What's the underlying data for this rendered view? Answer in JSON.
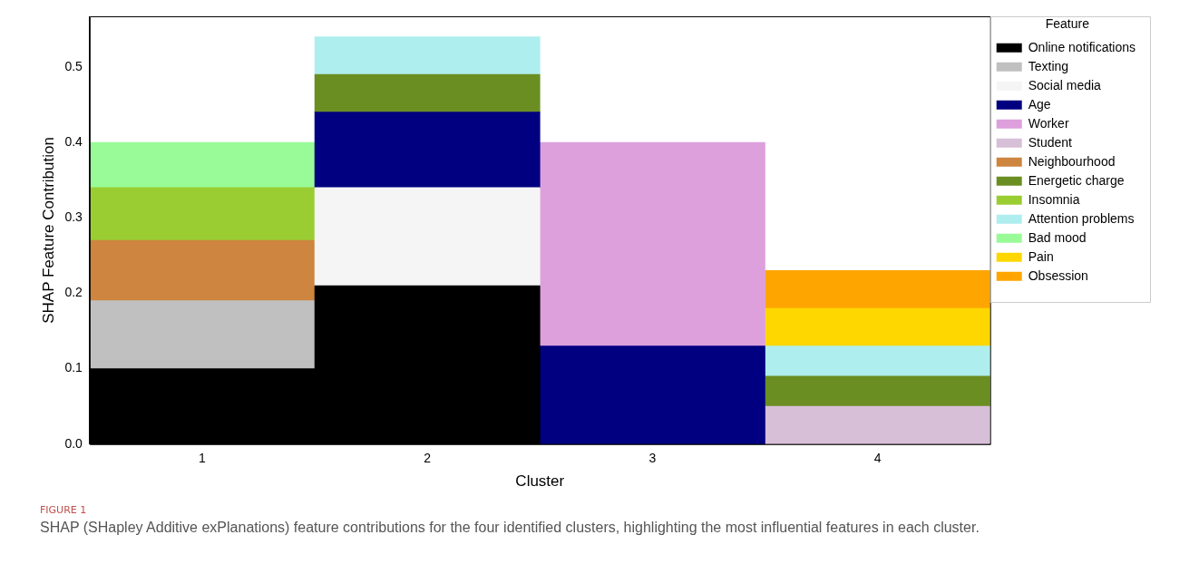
{
  "chart_data": {
    "type": "bar",
    "stacked": true,
    "xlabel": "Cluster",
    "ylabel": "SHAP Feature Contribution",
    "legend_title": "Feature",
    "legend": "right",
    "grid": false,
    "categories": [
      "1",
      "2",
      "3",
      "4"
    ],
    "ylim": [
      0,
      0.567
    ],
    "yticks": [
      {
        "value": 0,
        "label": "0.0"
      },
      {
        "value": 0.1,
        "label": "0.1"
      },
      {
        "value": 0.2,
        "label": "0.2"
      },
      {
        "value": 0.3,
        "label": "0.3"
      },
      {
        "value": 0.4,
        "label": "0.4"
      },
      {
        "value": 0.5,
        "label": "0.5"
      }
    ],
    "series": [
      {
        "name": "Online notifications",
        "color": "#000000",
        "values": [
          0.1,
          0.21,
          null,
          null
        ]
      },
      {
        "name": "Texting",
        "color": "#c0c0c0",
        "values": [
          0.09,
          null,
          null,
          null
        ]
      },
      {
        "name": "Social media",
        "color": "#f5f5f5",
        "values": [
          null,
          0.13,
          null,
          null
        ]
      },
      {
        "name": "Age",
        "color": "#000080",
        "values": [
          null,
          0.1,
          0.13,
          null
        ]
      },
      {
        "name": "Worker",
        "color": "#dda0dd",
        "values": [
          null,
          null,
          0.27,
          null
        ]
      },
      {
        "name": "Student",
        "color": "#d8bfd8",
        "values": [
          null,
          null,
          null,
          0.05
        ]
      },
      {
        "name": "Neighbourhood",
        "color": "#cd853f",
        "values": [
          0.08,
          null,
          null,
          null
        ]
      },
      {
        "name": "Energetic charge",
        "color": "#6b8e23",
        "values": [
          null,
          0.05,
          null,
          0.04
        ]
      },
      {
        "name": "Insomnia",
        "color": "#9acd32",
        "values": [
          0.07,
          null,
          null,
          null
        ]
      },
      {
        "name": "Attention problems",
        "color": "#afeeee",
        "values": [
          null,
          0.05,
          null,
          0.04
        ]
      },
      {
        "name": "Bad mood",
        "color": "#98fb98",
        "values": [
          0.06,
          null,
          null,
          null
        ]
      },
      {
        "name": "Pain",
        "color": "#ffd700",
        "values": [
          null,
          null,
          null,
          0.05
        ]
      },
      {
        "name": "Obsession",
        "color": "#ffa500",
        "values": [
          null,
          null,
          null,
          0.05
        ]
      }
    ],
    "annotations": [
      "FIGURE 1",
      "SHAP (SHapley Additive exPlanations) feature contributions for the four identified clusters, highlighting the most influential features in each cluster."
    ]
  }
}
